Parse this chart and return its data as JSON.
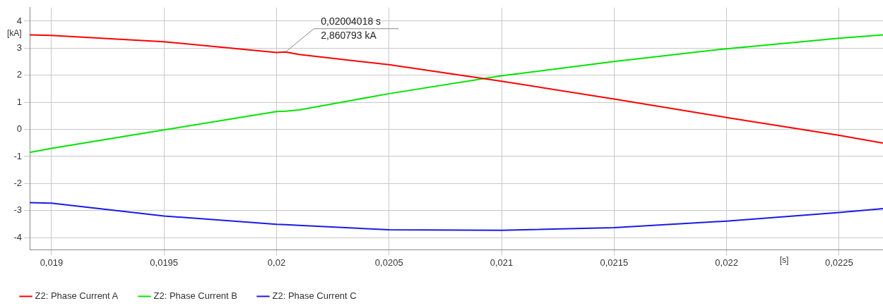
{
  "chart_data": {
    "type": "line",
    "xlabel": "[s]",
    "ylabel": "[kA]",
    "x": [
      0.018903,
      0.019,
      0.0195,
      0.02,
      0.02004018,
      0.0201,
      0.0205,
      0.021,
      0.0215,
      0.022,
      0.0225,
      0.022695
    ],
    "series": [
      {
        "name": "Z2: Phase Current A",
        "color": "#ff0000",
        "values": [
          3.49,
          3.47,
          3.24,
          2.84,
          2.860793,
          2.77,
          2.39,
          1.78,
          1.12,
          0.44,
          -0.22,
          -0.51
        ]
      },
      {
        "name": "Z2: Phase Current B",
        "color": "#00e600",
        "values": [
          -0.85,
          -0.7,
          -0.02,
          0.66,
          0.67,
          0.72,
          1.32,
          1.98,
          2.51,
          2.98,
          3.37,
          3.49
        ]
      },
      {
        "name": "Z2: Phase Current C",
        "color": "#1a1ae6",
        "values": [
          -2.71,
          -2.73,
          -3.2,
          -3.51,
          -3.52,
          -3.55,
          -3.71,
          -3.73,
          -3.63,
          -3.39,
          -3.07,
          -2.93
        ]
      }
    ],
    "xlim": [
      0.018903,
      0.022695
    ],
    "xticks": [
      {
        "value": 0.019,
        "label": "0,019"
      },
      {
        "value": 0.0195,
        "label": "0,0195"
      },
      {
        "value": 0.02,
        "label": "0,02"
      },
      {
        "value": 0.0205,
        "label": "0,0205"
      },
      {
        "value": 0.021,
        "label": "0,021"
      },
      {
        "value": 0.0215,
        "label": "0,0215"
      },
      {
        "value": 0.022,
        "label": "0,022"
      },
      {
        "value": 0.0225,
        "label": "0,0225"
      }
    ],
    "ylim": [
      -4.45,
      4.5
    ],
    "yticks": [
      -4,
      -3,
      -2,
      -1,
      0,
      1,
      2,
      3,
      4
    ],
    "grid": true,
    "legend": "bottom left",
    "marker": "none",
    "line_style": "solid",
    "annotations": [
      {
        "text": "0,02004018 s",
        "x": 0.02004018,
        "y": 2.860793
      },
      {
        "text": "2,860793 kA",
        "x": 0.02004018,
        "y": 2.860793
      }
    ]
  }
}
